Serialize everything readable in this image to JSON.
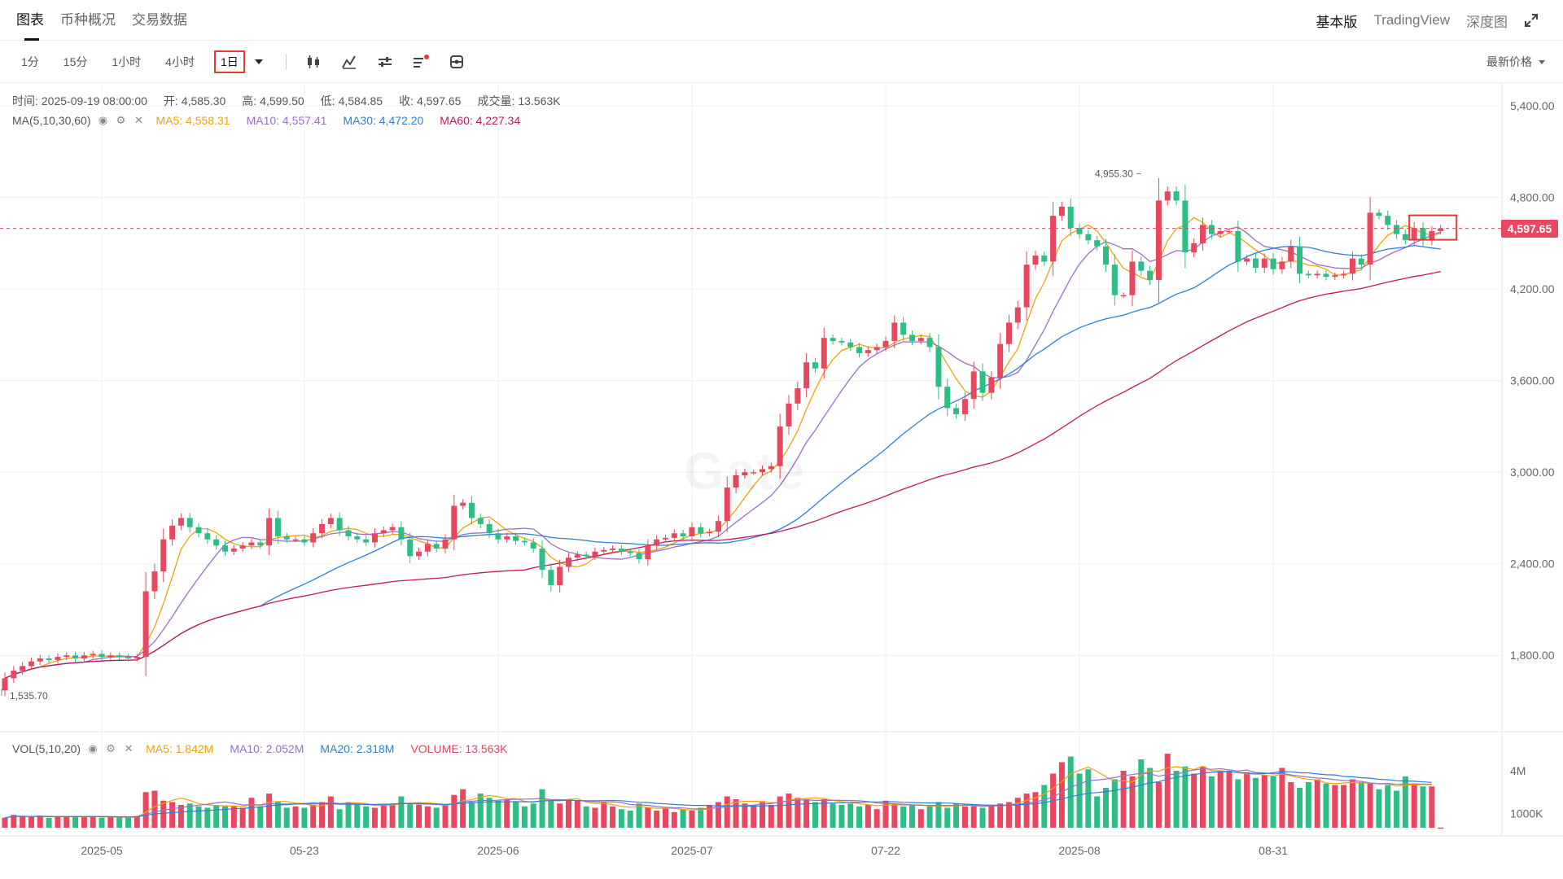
{
  "tabs": [
    "图表",
    "币种概况",
    "交易数据"
  ],
  "right_tabs": [
    "基本版",
    "TradingView",
    "深度图"
  ],
  "intervals": [
    "1分",
    "15分",
    "1小时",
    "4小时",
    "1日"
  ],
  "price_type": "最新价格",
  "ohlc": {
    "time_label": "时间:",
    "time": "2025-09-19 08:00:00",
    "open_label": "开:",
    "open": "4,585.30",
    "high_label": "高:",
    "high": "4,599.50",
    "low_label": "低:",
    "low": "4,584.85",
    "close_label": "收:",
    "close": "4,597.65",
    "volume_label": "成交量:",
    "volume": "13.563K"
  },
  "ma_legend": {
    "name": "MA(5,10,30,60)",
    "items": [
      {
        "text": "MA5: 4,558.31",
        "color": "#f0a30a"
      },
      {
        "text": "MA10: 4,557.41",
        "color": "#9b6fc4"
      },
      {
        "text": "MA30: 4,472.20",
        "color": "#2f7fd6"
      },
      {
        "text": "MA60: 4,227.34",
        "color": "#c2185b"
      }
    ]
  },
  "vol_legend": {
    "name": "VOL(5,10,20)",
    "items": [
      {
        "text": "MA5: 1.842M",
        "color": "#f0a30a"
      },
      {
        "text": "MA10: 2.052M",
        "color": "#9b6fc4"
      },
      {
        "text": "MA20: 2.318M",
        "color": "#2f7fd6"
      },
      {
        "text": "VOLUME: 13.563K",
        "color": "#e8475f"
      }
    ]
  },
  "current_price": "4,597.65",
  "watermark": "Gate",
  "colors": {
    "up": "#2ebd85",
    "down": "#e8475f",
    "grid": "#f0f0f0"
  },
  "chart_data": {
    "type": "candlestick",
    "price_axis": {
      "ticks": [
        1800,
        2400,
        3000,
        3600,
        4200,
        4800,
        5400
      ],
      "labels": [
        "1,800.00",
        "2,400.00",
        "3,000.00",
        "3,600.00",
        "4,200.00",
        "4,800.00",
        "5,400.00"
      ],
      "range": [
        1300,
        5550
      ]
    },
    "volume_axis": {
      "ticks": [
        1000000,
        4000000
      ],
      "labels": [
        "1000K",
        "4M"
      ],
      "range": [
        0,
        6000000
      ]
    },
    "x_ticks": [
      "2025-05",
      "05-23",
      "2025-06",
      "2025-07",
      "07-22",
      "2025-08",
      "08-31"
    ],
    "annotations": {
      "max": "4,955.30",
      "min": "1,535.70"
    },
    "closes": [
      1650,
      1700,
      1730,
      1760,
      1780,
      1770,
      1790,
      1800,
      1780,
      1800,
      1810,
      1790,
      1800,
      1790,
      1780,
      1790,
      2220,
      2350,
      2560,
      2650,
      2700,
      2640,
      2600,
      2560,
      2520,
      2480,
      2500,
      2520,
      2540,
      2520,
      2700,
      2580,
      2560,
      2560,
      2540,
      2600,
      2660,
      2700,
      2620,
      2580,
      2560,
      2540,
      2600,
      2620,
      2640,
      2560,
      2450,
      2480,
      2530,
      2500,
      2560,
      2780,
      2800,
      2700,
      2660,
      2600,
      2560,
      2580,
      2550,
      2540,
      2500,
      2360,
      2260,
      2380,
      2440,
      2460,
      2450,
      2480,
      2490,
      2500,
      2480,
      2470,
      2430,
      2520,
      2560,
      2570,
      2600,
      2580,
      2640,
      2600,
      2610,
      2680,
      2900,
      2980,
      3000,
      3000,
      3020,
      3040,
      3300,
      3450,
      3550,
      3720,
      3680,
      3880,
      3860,
      3850,
      3820,
      3780,
      3800,
      3820,
      3860,
      3980,
      3900,
      3860,
      3880,
      3820,
      3560,
      3420,
      3380,
      3480,
      3660,
      3520,
      3620,
      3840,
      3980,
      4080,
      4360,
      4420,
      4380,
      4680,
      4740,
      4600,
      4560,
      4520,
      4480,
      4360,
      4160,
      4160,
      4380,
      4320,
      4260,
      4780,
      4840,
      4780,
      4440,
      4500,
      4620,
      4560,
      4580,
      4580,
      4380,
      4400,
      4340,
      4400,
      4330,
      4380,
      4480,
      4300,
      4290,
      4300,
      4280,
      4290,
      4300,
      4400,
      4360,
      4700,
      4680,
      4620,
      4560,
      4520,
      4600,
      4520,
      4580,
      4597.65
    ],
    "volumes": [
      700000,
      900000,
      800000,
      750000,
      850000,
      700000,
      800000,
      750000,
      820000,
      760000,
      800000,
      700000,
      760000,
      720000,
      700000,
      820000,
      2500000,
      2600000,
      1900000,
      1800000,
      1600000,
      1700000,
      1500000,
      1400000,
      1600000,
      1500000,
      1550000,
      1400000,
      2100000,
      1500000,
      2400000,
      1800000,
      1400000,
      1500000,
      1400000,
      1600000,
      1800000,
      2200000,
      1300000,
      1800000,
      1700000,
      1500000,
      1400000,
      1600000,
      1700000,
      2200000,
      1700000,
      1600000,
      1500000,
      1400000,
      1600000,
      2300000,
      2700000,
      1800000,
      2400000,
      2100000,
      1900000,
      2000000,
      1800000,
      1500000,
      1700000,
      2700000,
      1900000,
      1700000,
      2000000,
      1900000,
      1500000,
      1400000,
      1800000,
      1500000,
      1300000,
      1200000,
      1700000,
      1400000,
      1200000,
      1400000,
      1100000,
      1300000,
      1200000,
      1400000,
      1600000,
      1800000,
      2200000,
      2000000,
      1700000,
      1600000,
      1800000,
      1600000,
      2200000,
      2400000,
      2100000,
      2000000,
      1800000,
      2000000,
      1700000,
      1600000,
      1700000,
      1500000,
      1600000,
      1300000,
      1900000,
      1700000,
      1500000,
      1600000,
      1300000,
      1500000,
      1800000,
      1400000,
      1700000,
      1500000,
      1500000,
      1400000,
      1600000,
      1700000,
      1800000,
      2100000,
      2400000,
      2500000,
      3000000,
      3800000,
      4600000,
      5000000,
      3800000,
      4100000,
      2200000,
      2800000,
      3400000,
      4000000,
      3600000,
      4800000,
      4200000,
      3200000,
      5200000,
      4000000,
      4300000,
      3800000,
      4300000,
      3600000,
      4000000,
      4000000,
      3400000,
      3900000,
      3500000,
      3700000,
      3600000,
      4200000,
      3200000,
      2800000,
      3200000,
      3400000,
      3100000,
      3000000,
      3000000,
      3400000,
      3200000,
      3100000,
      2700000,
      3000000,
      2600000,
      3600000,
      3100000,
      2900000,
      2900000,
      13563
    ]
  }
}
